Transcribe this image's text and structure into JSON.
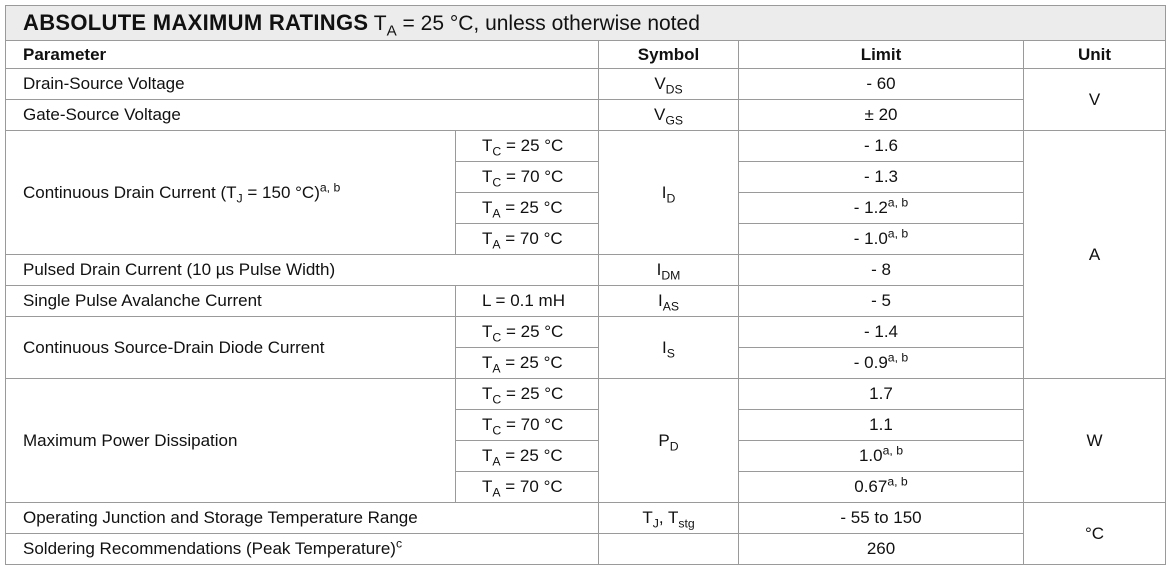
{
  "title": [
    "ABSOLUTE MAXIMUM RATINGS",
    " T",
    {
      "sub": "A"
    },
    " = 25 °C, unless otherwise noted"
  ],
  "table": {
    "header": {
      "parameter": "Parameter",
      "symbol": "Symbol",
      "limit": "Limit",
      "unit": "Unit"
    },
    "rows": [
      {
        "parameter": "Drain-Source Voltage",
        "symbol": [
          "V",
          {
            "sub": "DS"
          }
        ],
        "limit": "- 60",
        "unit": "V"
      },
      {
        "parameter": "Gate-Source Voltage",
        "symbol": [
          "V",
          {
            "sub": "GS"
          }
        ],
        "limit": "± 20"
      },
      {
        "parameter": [
          "Continuous Drain Current (T",
          {
            "sub": "J"
          },
          " = 150 °C)",
          {
            "sup": "a, b"
          }
        ],
        "condition": [
          "T",
          {
            "sub": "C"
          },
          " = 25 °C"
        ],
        "symbol": [
          "I",
          {
            "sub": "D"
          }
        ],
        "limit": "- 1.6",
        "unit": "A"
      },
      {
        "condition": [
          "T",
          {
            "sub": "C"
          },
          " = 70 °C"
        ],
        "limit": "- 1.3"
      },
      {
        "condition": [
          "T",
          {
            "sub": "A"
          },
          " = 25 °C"
        ],
        "limit": [
          "- 1.2",
          {
            "sup": "a, b"
          }
        ]
      },
      {
        "condition": [
          "T",
          {
            "sub": "A"
          },
          " = 70 °C"
        ],
        "limit": [
          "- 1.0",
          {
            "sup": "a, b"
          }
        ]
      },
      {
        "parameter": "Pulsed Drain Current (10 µs Pulse Width)",
        "symbol": [
          "I",
          {
            "sub": "DM"
          }
        ],
        "limit": "- 8"
      },
      {
        "parameter": "Single Pulse Avalanche Current",
        "condition": "L = 0.1 mH",
        "symbol": [
          "I",
          {
            "sub": "AS"
          }
        ],
        "limit": "- 5"
      },
      {
        "parameter": "Continuous Source-Drain Diode Current",
        "condition": [
          "T",
          {
            "sub": "C"
          },
          " = 25 °C"
        ],
        "symbol": [
          "I",
          {
            "sub": "S"
          }
        ],
        "limit": "- 1.4"
      },
      {
        "condition": [
          "T",
          {
            "sub": "A"
          },
          " = 25 °C"
        ],
        "limit": [
          "- 0.9",
          {
            "sup": "a, b"
          }
        ]
      },
      {
        "parameter": "Maximum Power Dissipation",
        "condition": [
          "T",
          {
            "sub": "C"
          },
          " = 25 °C"
        ],
        "symbol": [
          "P",
          {
            "sub": "D"
          }
        ],
        "limit": "1.7",
        "unit": "W"
      },
      {
        "condition": [
          "T",
          {
            "sub": "C"
          },
          " = 70 °C"
        ],
        "limit": "1.1"
      },
      {
        "condition": [
          "T",
          {
            "sub": "A"
          },
          " = 25 °C"
        ],
        "limit": [
          "1.0",
          {
            "sup": "a, b"
          }
        ]
      },
      {
        "condition": [
          "T",
          {
            "sub": "A"
          },
          " = 70 °C"
        ],
        "limit": [
          "0.67",
          {
            "sup": "a, b"
          }
        ]
      },
      {
        "parameter": "Operating Junction and Storage Temperature Range",
        "symbol": [
          "T",
          {
            "sub": "J"
          },
          ", T",
          {
            "sub": "stg"
          }
        ],
        "limit": "- 55 to 150",
        "unit": "°C"
      },
      {
        "parameter": [
          "Soldering Recommendations (Peak Temperature)",
          {
            "sup": "c"
          }
        ],
        "limit": "260"
      }
    ]
  }
}
